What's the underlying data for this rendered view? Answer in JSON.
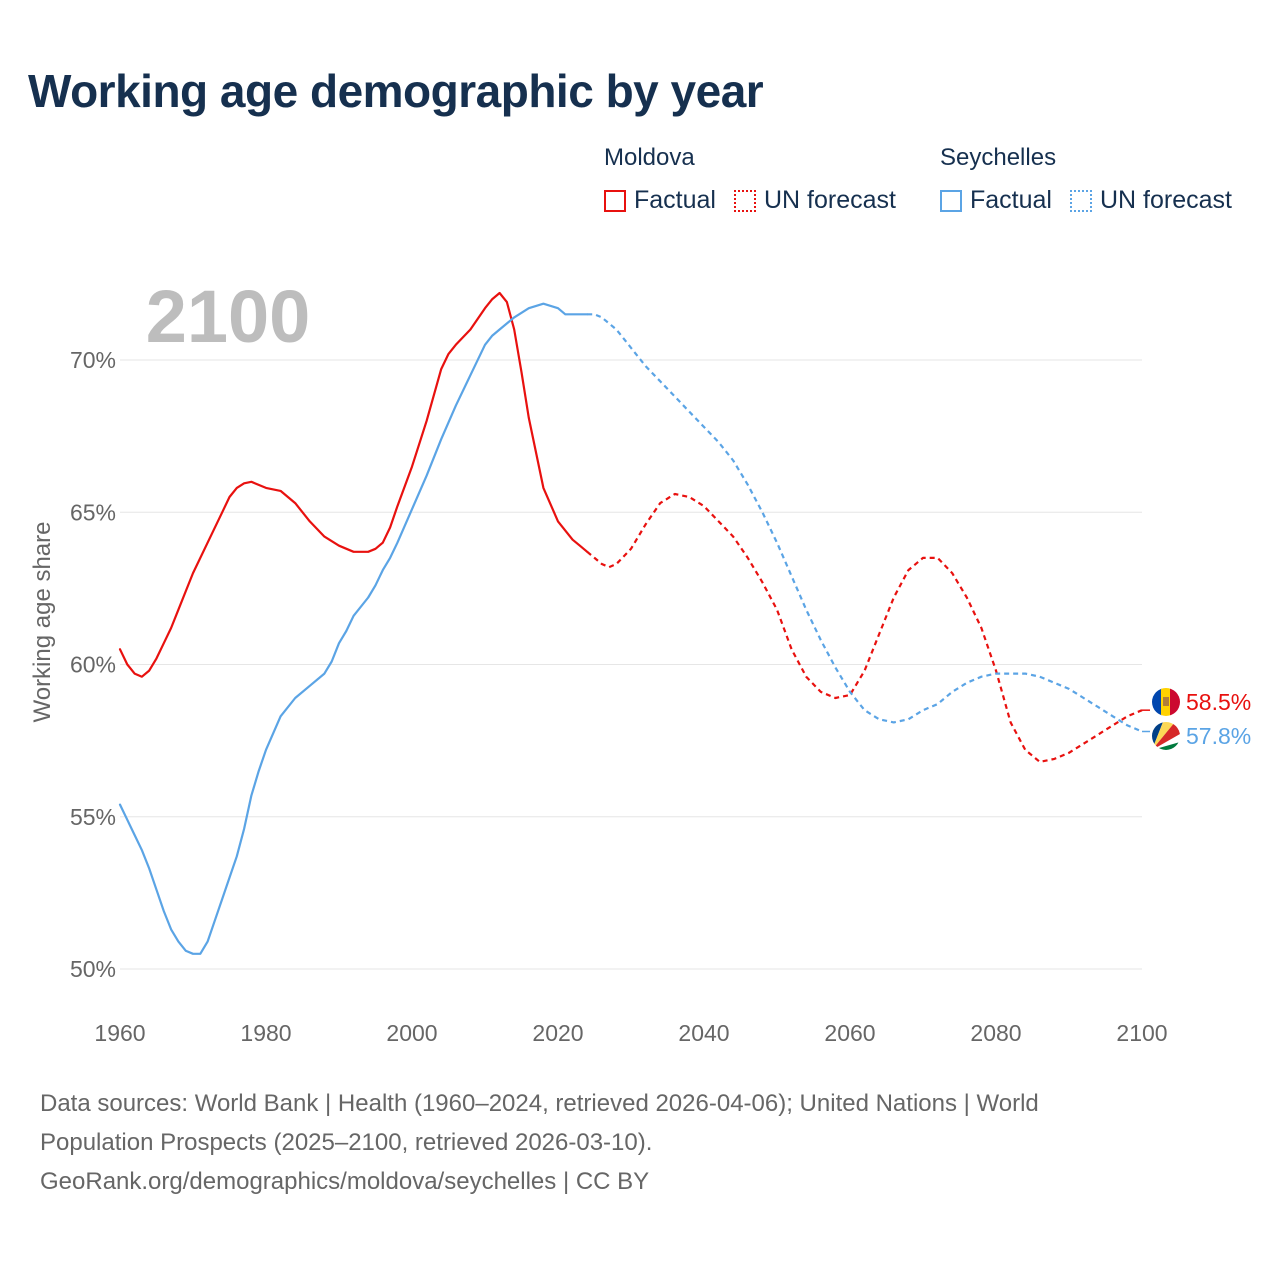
{
  "title": "Working age demographic by year",
  "legend": {
    "groups": [
      {
        "name": "Moldova",
        "color": "#e8110f",
        "items": [
          "Factual",
          "UN forecast"
        ]
      },
      {
        "name": "Seychelles",
        "color": "#5ba4e5",
        "items": [
          "Factual",
          "UN forecast"
        ]
      }
    ]
  },
  "year_watermark": "2100",
  "end_labels": {
    "moldova": "58.5%",
    "seychelles": "57.8%"
  },
  "flag_icons": {
    "moldova": "moldova-flag-icon",
    "seychelles": "seychelles-flag-icon"
  },
  "sources": {
    "line1": "Data sources: World Bank | Health (1960–2024, retrieved 2026-04-06); United Nations | World",
    "line2": "Population Prospects (2025–2100, retrieved 2026-03-10).",
    "line3": "GeoRank.org/demographics/moldova/seychelles | CC BY"
  },
  "chart_data": {
    "type": "line",
    "title": "Working age demographic by year",
    "xlabel": "",
    "ylabel": "Working age share",
    "xlim": [
      1960,
      2100
    ],
    "ylim": [
      50,
      72.5
    ],
    "x_ticks": [
      1960,
      1980,
      2000,
      2020,
      2040,
      2060,
      2080,
      2100
    ],
    "y_ticks": [
      50,
      55,
      60,
      65,
      70
    ],
    "y_tick_labels": [
      "50%",
      "55%",
      "60%",
      "65%",
      "70%"
    ],
    "grid": true,
    "factual_end_year": 2024,
    "series": [
      {
        "name": "Moldova",
        "color": "#e8110f",
        "x": [
          1960,
          1961,
          1962,
          1963,
          1964,
          1965,
          1966,
          1967,
          1968,
          1969,
          1970,
          1972,
          1974,
          1975,
          1976,
          1977,
          1978,
          1980,
          1982,
          1984,
          1986,
          1988,
          1990,
          1992,
          1994,
          1995,
          1996,
          1997,
          1998,
          2000,
          2002,
          2004,
          2005,
          2006,
          2008,
          2010,
          2011,
          2012,
          2013,
          2014,
          2015,
          2016,
          2018,
          2020,
          2022,
          2023,
          2024,
          2025,
          2026,
          2027,
          2028,
          2030,
          2032,
          2034,
          2036,
          2038,
          2040,
          2042,
          2044,
          2046,
          2048,
          2050,
          2052,
          2054,
          2056,
          2058,
          2060,
          2062,
          2064,
          2066,
          2068,
          2070,
          2072,
          2074,
          2076,
          2078,
          2080,
          2082,
          2084,
          2086,
          2088,
          2090,
          2092,
          2094,
          2096,
          2098,
          2100
        ],
        "values": [
          60.5,
          60.0,
          59.7,
          59.6,
          59.8,
          60.2,
          60.7,
          61.2,
          61.8,
          62.4,
          63.0,
          64.0,
          65.0,
          65.5,
          65.8,
          65.95,
          66.0,
          65.8,
          65.7,
          65.3,
          64.7,
          64.2,
          63.9,
          63.7,
          63.7,
          63.8,
          64.0,
          64.5,
          65.2,
          66.5,
          68.0,
          69.7,
          70.2,
          70.5,
          71.0,
          71.7,
          72.0,
          72.2,
          71.9,
          71.0,
          69.6,
          68.1,
          65.8,
          64.7,
          64.1,
          63.9,
          63.7,
          63.5,
          63.3,
          63.2,
          63.3,
          63.8,
          64.6,
          65.3,
          65.6,
          65.5,
          65.2,
          64.7,
          64.2,
          63.5,
          62.7,
          61.8,
          60.5,
          59.6,
          59.1,
          58.9,
          59.0,
          59.8,
          61.0,
          62.2,
          63.1,
          63.5,
          63.5,
          63.0,
          62.2,
          61.2,
          59.8,
          58.1,
          57.2,
          56.8,
          56.9,
          57.1,
          57.4,
          57.7,
          58.0,
          58.3,
          58.5
        ]
      },
      {
        "name": "Seychelles",
        "color": "#5ba4e5",
        "x": [
          1960,
          1961,
          1962,
          1963,
          1964,
          1965,
          1966,
          1967,
          1968,
          1969,
          1970,
          1971,
          1972,
          1973,
          1974,
          1975,
          1976,
          1977,
          1978,
          1979,
          1980,
          1982,
          1984,
          1986,
          1988,
          1989,
          1990,
          1991,
          1992,
          1994,
          1995,
          1996,
          1997,
          1998,
          2000,
          2002,
          2004,
          2006,
          2008,
          2010,
          2011,
          2012,
          2014,
          2016,
          2018,
          2020,
          2021,
          2022,
          2024,
          2025,
          2026,
          2028,
          2030,
          2032,
          2034,
          2036,
          2038,
          2040,
          2042,
          2044,
          2046,
          2048,
          2050,
          2052,
          2054,
          2056,
          2058,
          2060,
          2062,
          2064,
          2066,
          2068,
          2070,
          2072,
          2074,
          2076,
          2078,
          2080,
          2082,
          2084,
          2086,
          2088,
          2090,
          2092,
          2094,
          2096,
          2098,
          2100
        ],
        "values": [
          55.4,
          54.9,
          54.4,
          53.9,
          53.3,
          52.6,
          51.9,
          51.3,
          50.9,
          50.6,
          50.5,
          50.5,
          50.9,
          51.6,
          52.3,
          53.0,
          53.7,
          54.6,
          55.7,
          56.5,
          57.2,
          58.3,
          58.9,
          59.3,
          59.7,
          60.1,
          60.7,
          61.1,
          61.6,
          62.2,
          62.6,
          63.1,
          63.5,
          64.0,
          65.1,
          66.2,
          67.4,
          68.5,
          69.5,
          70.5,
          70.8,
          71.0,
          71.4,
          71.7,
          71.85,
          71.7,
          71.5,
          71.5,
          71.5,
          71.5,
          71.4,
          71.0,
          70.4,
          69.8,
          69.3,
          68.8,
          68.3,
          67.8,
          67.3,
          66.7,
          65.9,
          65.0,
          64.0,
          62.9,
          61.8,
          60.8,
          59.9,
          59.1,
          58.5,
          58.2,
          58.1,
          58.2,
          58.5,
          58.7,
          59.1,
          59.4,
          59.6,
          59.7,
          59.7,
          59.7,
          59.6,
          59.4,
          59.2,
          58.9,
          58.6,
          58.3,
          58.0,
          57.8
        ]
      }
    ]
  }
}
